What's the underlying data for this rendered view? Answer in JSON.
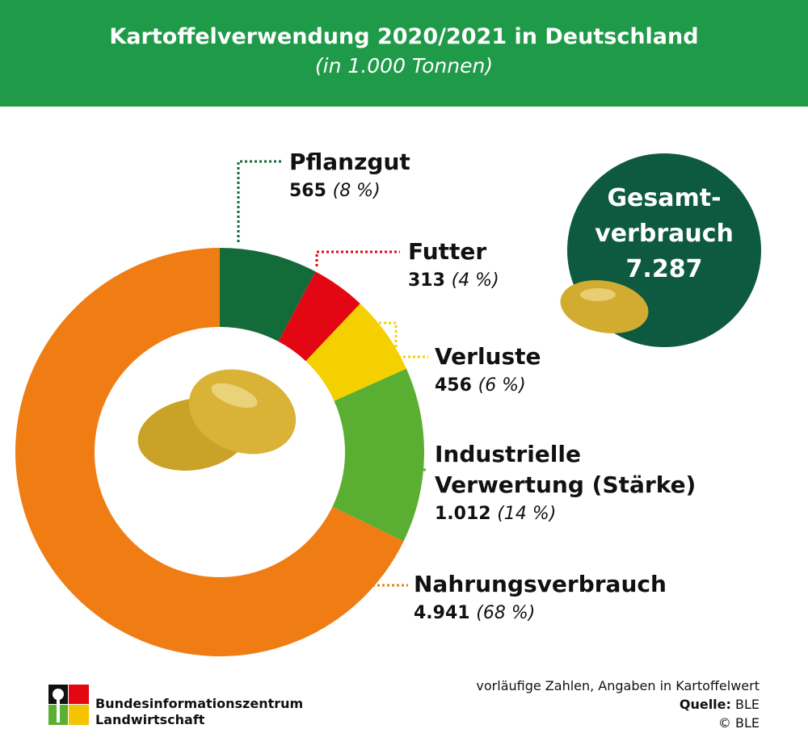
{
  "chart_data": {
    "type": "pie",
    "title": "Kartoffelverwendung 2020/2021 in Deutschland",
    "subtitle": "(in 1.000 Tonnen)",
    "categories": [
      "Pflanzgut",
      "Futter",
      "Verluste",
      "Industrielle Verwertung (Stärke)",
      "Nahrungsverbrauch"
    ],
    "values": [
      565,
      313,
      456,
      1012,
      4941
    ],
    "value_labels": [
      "565",
      "313",
      "456",
      "1.012",
      "4.941"
    ],
    "percent_labels": [
      "(8 %)",
      "(4 %)",
      "(6 %)",
      "(14 %)",
      "(68 %)"
    ],
    "colors": [
      "#146b3a",
      "#e30613",
      "#f5d000",
      "#5aae32",
      "#ef7d14"
    ],
    "total_label_1": "Gesamt-",
    "total_label_2": "verbrauch",
    "total_value": "7.287"
  },
  "footer": {
    "note": "vorläufige Zahlen, Angaben in Kartoffelwert",
    "source_label": "Quelle:",
    "source_value": " BLE",
    "copyright": "© BLE"
  },
  "logo": {
    "line1": "Bundesinformationszentrum",
    "line2": "Landwirtschaft"
  }
}
